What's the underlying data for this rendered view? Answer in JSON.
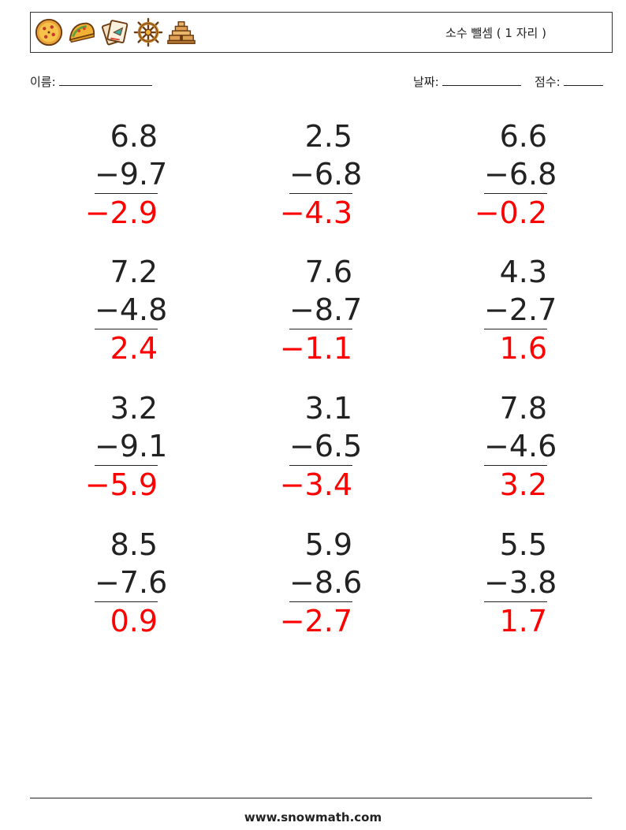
{
  "header": {
    "title": "소수 뺄셈 ( 1 자리 )",
    "icons": [
      "pizza-icon",
      "taco-icon",
      "travel-tickets-icon",
      "ship-wheel-icon",
      "pyramid-icon"
    ]
  },
  "meta": {
    "name_label": "이름:",
    "date_label": "날짜:",
    "score_label": "점수:"
  },
  "problems": [
    {
      "a": "6.8",
      "b": "−9.7",
      "ans": "−2.9"
    },
    {
      "a": "2.5",
      "b": "−6.8",
      "ans": "−4.3"
    },
    {
      "a": "6.6",
      "b": "−6.8",
      "ans": "−0.2"
    },
    {
      "a": "7.2",
      "b": "−4.8",
      "ans": "2.4"
    },
    {
      "a": "7.6",
      "b": "−8.7",
      "ans": "−1.1"
    },
    {
      "a": "4.3",
      "b": "−2.7",
      "ans": "1.6"
    },
    {
      "a": "3.2",
      "b": "−9.1",
      "ans": "−5.9"
    },
    {
      "a": "3.1",
      "b": "−6.5",
      "ans": "−3.4"
    },
    {
      "a": "7.8",
      "b": "−4.6",
      "ans": "3.2"
    },
    {
      "a": "8.5",
      "b": "−7.6",
      "ans": "0.9"
    },
    {
      "a": "5.9",
      "b": "−8.6",
      "ans": "−2.7"
    },
    {
      "a": "5.5",
      "b": "−3.8",
      "ans": "1.7"
    }
  ],
  "answer_color": "#ff0000",
  "footer": {
    "site": "www.snowmath.com"
  }
}
